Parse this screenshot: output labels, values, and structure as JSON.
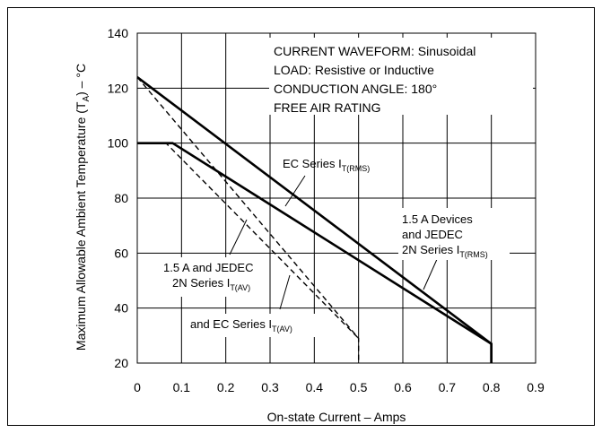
{
  "chart_data": {
    "type": "line",
    "xlabel": "On-state Current – Amps",
    "ylabel_parts": {
      "main": "Maximum Allowable Ambient Temperature (T",
      "sub": "A",
      "tail": ") – °C"
    },
    "xlim": [
      0,
      0.9
    ],
    "ylim": [
      20,
      140
    ],
    "xticks": [
      "0",
      "0.1",
      "0.2",
      "0.3",
      "0.4",
      "0.5",
      "0.6",
      "0.7",
      "0.8",
      "0.9"
    ],
    "yticks": [
      "20",
      "40",
      "60",
      "80",
      "100",
      "120",
      "140"
    ],
    "grid": true,
    "conditions": [
      "CURRENT WAVEFORM: Sinusoidal",
      "LOAD: Resistive or Inductive",
      "CONDUCTION ANGLE: 180°",
      "FREE AIR RATING"
    ],
    "series": [
      {
        "style": "solid",
        "x": [
          0,
          0.8,
          0.8
        ],
        "y": [
          124,
          27,
          20
        ]
      },
      {
        "style": "solid",
        "x": [
          0,
          0.08,
          0.8,
          0.8
        ],
        "y": [
          100,
          100,
          27,
          20
        ]
      },
      {
        "style": "dashed",
        "x": [
          0,
          0.5,
          0.5
        ],
        "y": [
          124,
          29,
          21
        ]
      },
      {
        "style": "dashed",
        "x": [
          0,
          0.065,
          0.5
        ],
        "y": [
          100,
          100,
          29
        ]
      }
    ],
    "annotations": [
      {
        "lines": [
          {
            "main": "EC Series I",
            "sub": "T(RMS)"
          }
        ]
      },
      {
        "lines": [
          {
            "main": "1.5 A Devices"
          },
          {
            "main": "and JEDEC"
          },
          {
            "main": "2N Series I",
            "sub": "T(RMS)"
          }
        ]
      },
      {
        "lines": [
          {
            "main": "1.5 A and JEDEC"
          },
          {
            "main": "2N Series I",
            "sub": "T(AV)"
          }
        ]
      },
      {
        "lines": [
          {
            "main": "and EC Series I",
            "sub": "T(AV)"
          }
        ]
      }
    ]
  }
}
